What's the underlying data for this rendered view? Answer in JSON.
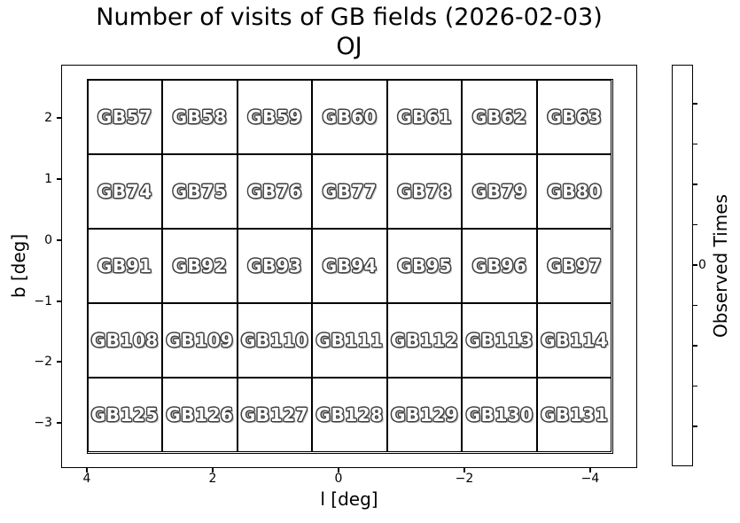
{
  "figure_title": "Number of visits of GB fields (2026-02-03)",
  "axes_title": "OJ",
  "axes": {
    "xlabel": "l [deg]",
    "ylabel": "b [deg]",
    "x_tick_labels": [
      "4",
      "2",
      "0",
      "−2",
      "−4"
    ],
    "y_tick_labels": [
      "2",
      "1",
      "0",
      "−1",
      "−2",
      "−3"
    ]
  },
  "colorbar": {
    "label": "Observed Times",
    "tick_labels": [
      "0"
    ],
    "num_ticks": 9,
    "labeled_tick_index": 4
  },
  "colors": {
    "line": "#000000",
    "cell_fill": "#ffffff",
    "cell_label_fill": "#ffffff",
    "cell_label_outline": "#3f3f3f",
    "background": "#ffffff"
  },
  "chart_data": {
    "type": "heatmap",
    "title": "Number of visits of GB fields (2026-02-03)",
    "subtitle": "OJ",
    "xlabel": "l [deg]",
    "ylabel": "b [deg]",
    "x_ticks": [
      4,
      2,
      0,
      -2,
      -4
    ],
    "y_ticks": [
      2,
      1,
      0,
      -1,
      -2,
      -3
    ],
    "x_axis_inverted": true,
    "xlim": [
      4.4,
      -4.7
    ],
    "ylim": [
      -3.7,
      2.9
    ],
    "grid_rows": 5,
    "grid_cols": 7,
    "colorbar_label": "Observed Times",
    "colorbar_tick_labels": [
      "0"
    ],
    "cell_labels": [
      [
        "GB57",
        "GB58",
        "GB59",
        "GB60",
        "GB61",
        "GB62",
        "GB63"
      ],
      [
        "GB74",
        "GB75",
        "GB76",
        "GB77",
        "GB78",
        "GB79",
        "GB80"
      ],
      [
        "GB91",
        "GB92",
        "GB93",
        "GB94",
        "GB95",
        "GB96",
        "GB97"
      ],
      [
        "GB108",
        "GB109",
        "GB110",
        "GB111",
        "GB112",
        "GB113",
        "GB114"
      ],
      [
        "GB125",
        "GB126",
        "GB127",
        "GB128",
        "GB129",
        "GB130",
        "GB131"
      ]
    ],
    "values": [
      [
        0,
        0,
        0,
        0,
        0,
        0,
        0
      ],
      [
        0,
        0,
        0,
        0,
        0,
        0,
        0
      ],
      [
        0,
        0,
        0,
        0,
        0,
        0,
        0
      ],
      [
        0,
        0,
        0,
        0,
        0,
        0,
        0
      ],
      [
        0,
        0,
        0,
        0,
        0,
        0,
        0
      ]
    ]
  }
}
